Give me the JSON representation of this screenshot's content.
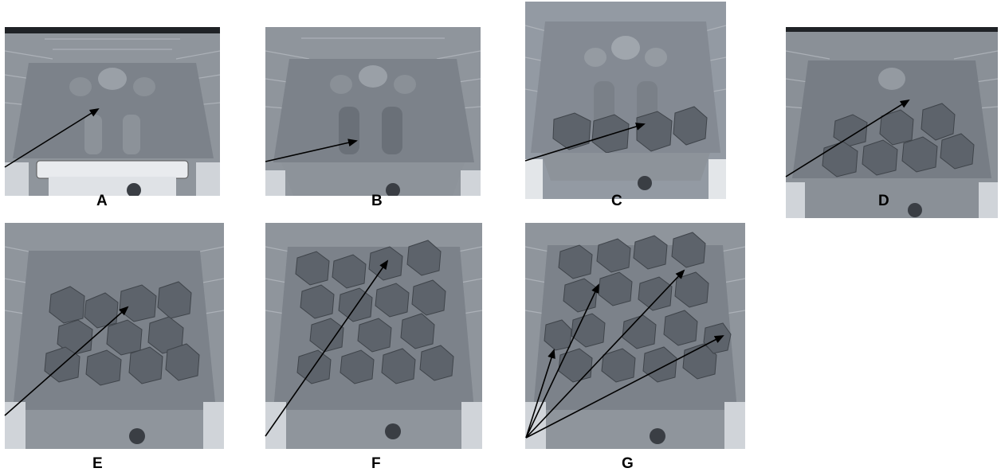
{
  "panels": [
    {
      "id": "A",
      "label": "A"
    },
    {
      "id": "B",
      "label": "B"
    },
    {
      "id": "C",
      "label": "C"
    },
    {
      "id": "D",
      "label": "D"
    },
    {
      "id": "E",
      "label": "E"
    },
    {
      "id": "F",
      "label": "F"
    },
    {
      "id": "G",
      "label": "G"
    }
  ],
  "colors": {
    "brick_wall": "#8f959c",
    "mortar": "#b4b9bf",
    "base": "#757b83",
    "coal": "#5d636b",
    "coal_highlight": "#a7adb4",
    "arrow": "#000000"
  }
}
